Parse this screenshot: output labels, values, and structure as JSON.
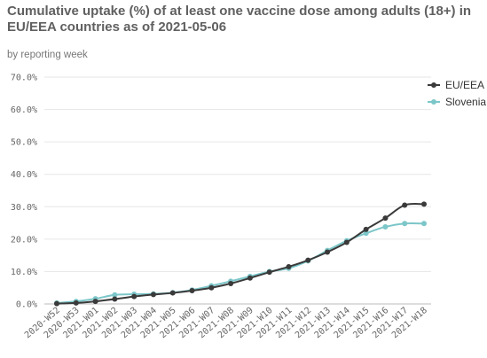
{
  "chart_data": {
    "type": "line",
    "title": "Cumulative uptake (%) of at least one vaccine dose among adults (18+) in EU/EEA countries as of 2021-05-06",
    "subtitle": "by reporting week",
    "xlabel": "",
    "ylabel": "",
    "ylim": [
      0,
      70
    ],
    "yticks": [
      "0.0%",
      "10.0%",
      "20.0%",
      "30.0%",
      "40.0%",
      "50.0%",
      "60.0%",
      "70.0%"
    ],
    "grid": true,
    "legend_position": "top-right",
    "categories": [
      "2020-W52",
      "2020-W53",
      "2021-W01",
      "2021-W02",
      "2021-W03",
      "2021-W04",
      "2021-W05",
      "2021-W06",
      "2021-W07",
      "2021-W08",
      "2021-W09",
      "2021-W10",
      "2021-W11",
      "2021-W12",
      "2021-W13",
      "2021-W14",
      "2021-W15",
      "2021-W16",
      "2021-W17",
      "2021-W18"
    ],
    "series": [
      {
        "name": "EU/EEA",
        "color": "#3a3a3a",
        "values": [
          0.1,
          0.3,
          0.8,
          1.5,
          2.3,
          2.9,
          3.4,
          4.1,
          5.0,
          6.3,
          8.0,
          9.8,
          11.5,
          13.5,
          16.0,
          19.0,
          23.0,
          26.5,
          30.5,
          30.8
        ]
      },
      {
        "name": "Slovenia",
        "color": "#7cc6c9",
        "values": [
          0.3,
          0.8,
          1.6,
          2.8,
          3.0,
          3.1,
          3.5,
          4.3,
          5.6,
          7.0,
          8.5,
          10.0,
          11.0,
          13.3,
          16.5,
          19.5,
          21.8,
          23.8,
          24.8,
          24.8
        ]
      }
    ]
  }
}
